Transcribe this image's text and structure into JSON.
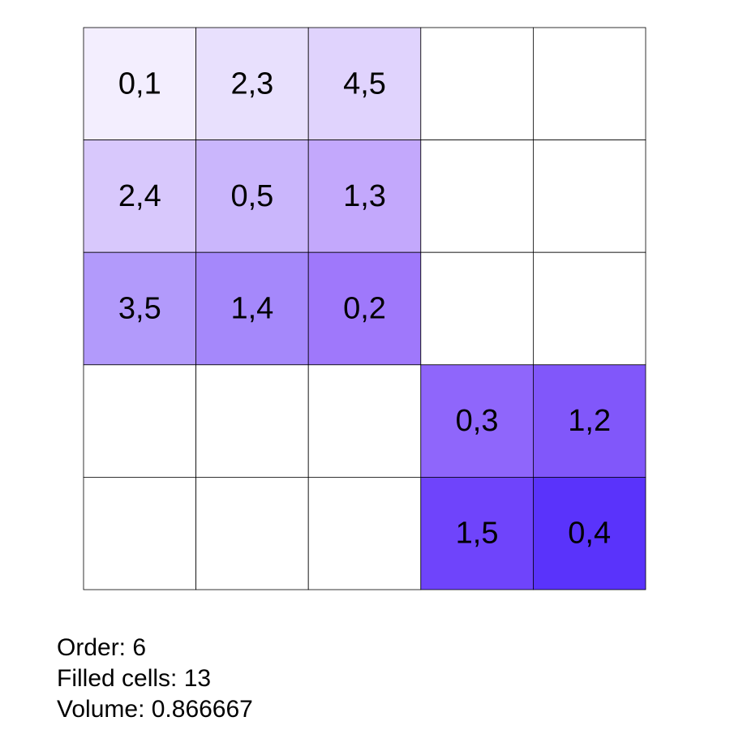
{
  "grid": {
    "rows": [
      [
        {
          "label": "0,1",
          "color": "#f3eefe"
        },
        {
          "label": "2,3",
          "color": "#e8e0fd"
        },
        {
          "label": "4,5",
          "color": "#e0d3fd"
        },
        null,
        null
      ],
      [
        {
          "label": "2,4",
          "color": "#d8c8fc"
        },
        {
          "label": "0,5",
          "color": "#cab6fc"
        },
        {
          "label": "1,3",
          "color": "#c3a8fc"
        },
        null,
        null
      ],
      [
        {
          "label": "3,5",
          "color": "#b29afb"
        },
        {
          "label": "1,4",
          "color": "#a588fb"
        },
        {
          "label": "0,2",
          "color": "#9f78fb"
        },
        null,
        null
      ],
      [
        null,
        null,
        null,
        {
          "label": "0,3",
          "color": "#8f66fb"
        },
        {
          "label": "1,2",
          "color": "#8157fa"
        }
      ],
      [
        null,
        null,
        null,
        {
          "label": "1,5",
          "color": "#6f44fb"
        },
        {
          "label": "0,4",
          "color": "#5a33fb"
        }
      ]
    ]
  },
  "footer": {
    "lines": [
      "Order: 6",
      "Filled cells: 13",
      "Volume: 0.866667"
    ]
  }
}
